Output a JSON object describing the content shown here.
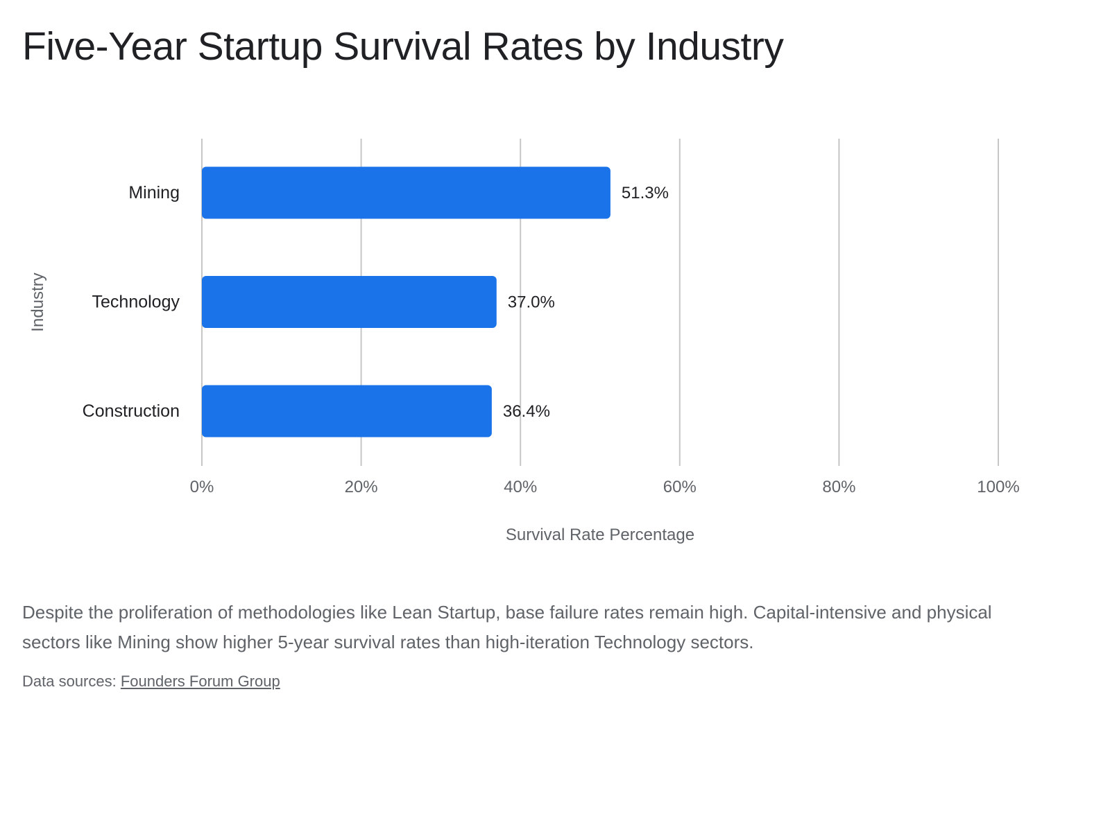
{
  "chart_data": {
    "type": "bar",
    "orientation": "horizontal",
    "title": "Five-Year Startup Survival Rates by Industry",
    "xlabel": "Survival Rate Percentage",
    "ylabel": "Industry",
    "categories": [
      "Mining",
      "Technology",
      "Construction"
    ],
    "values": [
      51.3,
      37.0,
      36.4
    ],
    "value_labels": [
      "51.3%",
      "37.0%",
      "36.4%"
    ],
    "xlim": [
      0,
      100
    ],
    "xticks": [
      0,
      20,
      40,
      60,
      80,
      100
    ],
    "xtick_labels": [
      "0%",
      "20%",
      "40%",
      "60%",
      "80%",
      "100%"
    ],
    "grid": "vertical",
    "legend": "none",
    "colors": {
      "bar": "#1a73e8",
      "grid": "#c6c6c6",
      "tick_text": "#5f6368",
      "category_text": "#202124"
    }
  },
  "description": "Despite the proliferation of methodologies like Lean Startup, base failure rates remain high. Capital-intensive and physical sectors like Mining show higher 5-year survival rates than high-iteration Technology sectors.",
  "sources": {
    "prefix": "Data sources: ",
    "link_text": "Founders Forum Group"
  }
}
